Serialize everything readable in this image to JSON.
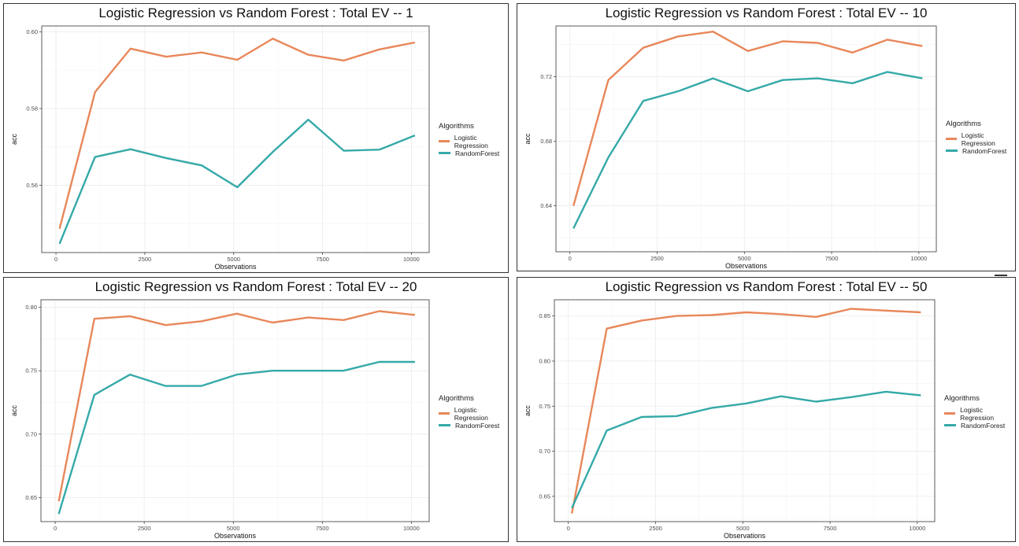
{
  "legend": {
    "title": "Algorithms",
    "entries": [
      "Logistic Regression",
      "RandomForest"
    ]
  },
  "colors": {
    "logistic": "#e8875a",
    "forest": "#35a9a8",
    "grid": "#ebebeb",
    "frame": "#333333"
  },
  "chart_data": [
    {
      "type": "line",
      "title": "Logistic Regression vs Random Forest : Total EV -- 1",
      "xlabel": "Observations",
      "ylabel": "acc",
      "xlim": [
        -400,
        10500
      ],
      "ylim": [
        0.5425,
        0.6015
      ],
      "x_ticks": [
        0,
        2500,
        5000,
        7500,
        10000
      ],
      "x_tick_labels": [
        "0",
        "2500",
        "5000",
        "7500",
        "10000"
      ],
      "y_ticks": [
        0.56,
        0.58,
        0.6
      ],
      "y_tick_labels": [
        "0.56",
        "0.58",
        "0.60"
      ],
      "grid": true,
      "legend_position": "right",
      "x": [
        100,
        1100,
        2100,
        3100,
        4100,
        5100,
        6100,
        7100,
        8100,
        9100,
        10100
      ],
      "series": [
        {
          "name": "Logistic Regression",
          "values": [
            0.5487,
            0.5843,
            0.5956,
            0.5935,
            0.5946,
            0.5927,
            0.5982,
            0.594,
            0.5925,
            0.5954,
            0.5972
          ]
        },
        {
          "name": "RandomForest",
          "values": [
            0.5448,
            0.5674,
            0.5694,
            0.5671,
            0.5652,
            0.5595,
            0.5687,
            0.5771,
            0.569,
            0.5693,
            0.573
          ]
        }
      ]
    },
    {
      "type": "line",
      "title": "Logistic Regression vs Random Forest : Total EV -- 10",
      "xlabel": "Observations",
      "ylabel": "acc",
      "xlim": [
        -400,
        10500
      ],
      "ylim": [
        0.6115,
        0.7515
      ],
      "x_ticks": [
        0,
        2500,
        5000,
        7500,
        10000
      ],
      "x_tick_labels": [
        "0",
        "2500",
        "5000",
        "7500",
        "10000"
      ],
      "y_ticks": [
        0.64,
        0.68,
        0.72
      ],
      "y_tick_labels": [
        "0.64",
        "0.68",
        "0.72"
      ],
      "grid": true,
      "legend_position": "right",
      "x": [
        100,
        1100,
        2100,
        3100,
        4100,
        5100,
        6100,
        7100,
        8100,
        9100,
        10100
      ],
      "series": [
        {
          "name": "Logistic Regression",
          "values": [
            0.64,
            0.718,
            0.738,
            0.745,
            0.748,
            0.736,
            0.742,
            0.741,
            0.735,
            0.743,
            0.739
          ]
        },
        {
          "name": "RandomForest",
          "values": [
            0.626,
            0.67,
            0.705,
            0.711,
            0.719,
            0.711,
            0.718,
            0.719,
            0.716,
            0.723,
            0.719
          ]
        }
      ]
    },
    {
      "type": "line",
      "title": "Logistic Regression vs Random Forest : Total EV -- 20",
      "xlabel": "Observations",
      "ylabel": "acc",
      "xlim": [
        -400,
        10500
      ],
      "ylim": [
        0.631,
        0.806
      ],
      "x_ticks": [
        0,
        2500,
        5000,
        7500,
        10000
      ],
      "x_tick_labels": [
        "0",
        "2500",
        "5000",
        "7500",
        "10000"
      ],
      "y_ticks": [
        0.65,
        0.7,
        0.75,
        0.8
      ],
      "y_tick_labels": [
        "0.65",
        "0.70",
        "0.75",
        "0.80"
      ],
      "grid": true,
      "legend_position": "right",
      "x": [
        100,
        1100,
        2100,
        3100,
        4100,
        5100,
        6100,
        7100,
        8100,
        9100,
        10100
      ],
      "series": [
        {
          "name": "Logistic Regression",
          "values": [
            0.647,
            0.791,
            0.793,
            0.786,
            0.789,
            0.795,
            0.788,
            0.792,
            0.79,
            0.797,
            0.794
          ]
        },
        {
          "name": "RandomForest",
          "values": [
            0.637,
            0.731,
            0.747,
            0.738,
            0.738,
            0.747,
            0.75,
            0.75,
            0.75,
            0.757,
            0.757
          ]
        }
      ]
    },
    {
      "type": "line",
      "title": "Logistic Regression vs Random Forest : Total EV -- 50",
      "xlabel": "Observations",
      "ylabel": "acc",
      "xlim": [
        -400,
        10500
      ],
      "ylim": [
        0.622,
        0.868
      ],
      "x_ticks": [
        0,
        2500,
        5000,
        7500,
        10000
      ],
      "x_tick_labels": [
        "0",
        "2500",
        "5000",
        "7500",
        "10000"
      ],
      "y_ticks": [
        0.65,
        0.7,
        0.75,
        0.8,
        0.85
      ],
      "y_tick_labels": [
        "0.65",
        "0.70",
        "0.75",
        "0.80",
        "0.85"
      ],
      "grid": true,
      "legend_position": "right",
      "x": [
        100,
        1100,
        2100,
        3100,
        4100,
        5100,
        6100,
        7100,
        8100,
        9100,
        10100
      ],
      "series": [
        {
          "name": "Logistic Regression",
          "values": [
            0.631,
            0.836,
            0.845,
            0.85,
            0.851,
            0.854,
            0.852,
            0.849,
            0.858,
            0.856,
            0.854
          ]
        },
        {
          "name": "RandomForest",
          "values": [
            0.637,
            0.723,
            0.738,
            0.739,
            0.748,
            0.753,
            0.761,
            0.755,
            0.76,
            0.766,
            0.762
          ]
        }
      ]
    }
  ]
}
